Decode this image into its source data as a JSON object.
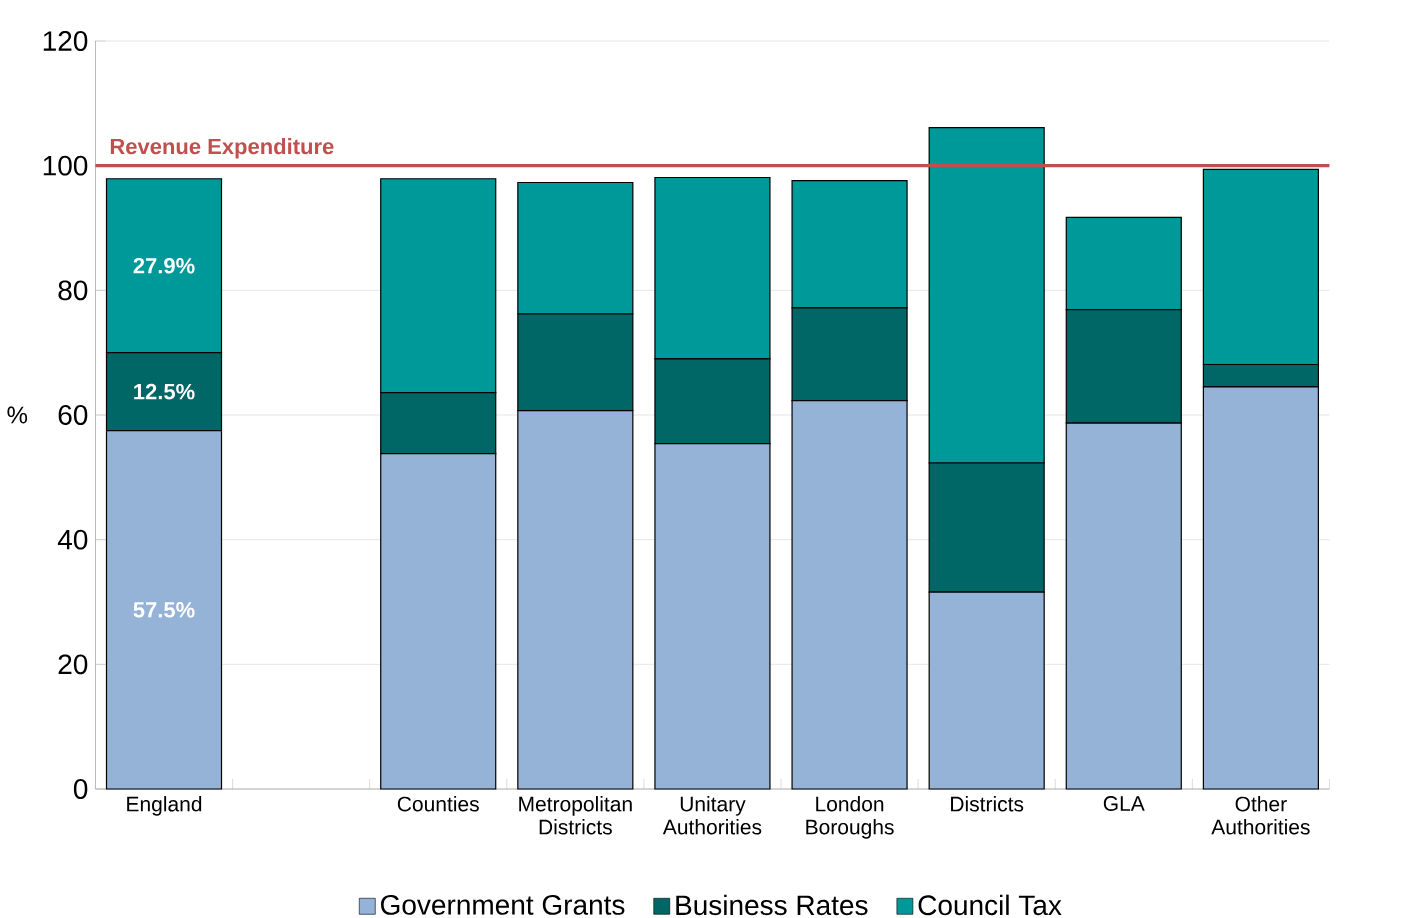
{
  "chart_data": {
    "type": "bar",
    "stacked": true,
    "ylabel": "%",
    "categories": [
      "England",
      null,
      "Counties",
      "Metropolitan Districts",
      "Unitary Authorities",
      "London Boroughs",
      "Districts",
      "GLA",
      "Other Authorities"
    ],
    "series": [
      {
        "name": "Government Grants",
        "color": "#95b3d7",
        "values": [
          57.5,
          null,
          53.8,
          60.7,
          55.4,
          62.3,
          31.6,
          58.7,
          64.5
        ],
        "value_labels": [
          "57.5%",
          null,
          null,
          null,
          null,
          null,
          null,
          null,
          null
        ]
      },
      {
        "name": "Business Rates",
        "color": "#006666",
        "values": [
          12.5,
          null,
          9.8,
          15.5,
          13.6,
          14.9,
          20.7,
          18.2,
          3.6
        ],
        "value_labels": [
          "12.5%",
          null,
          null,
          null,
          null,
          null,
          null,
          null,
          null
        ]
      },
      {
        "name": "Council Tax",
        "color": "#009999",
        "values": [
          27.9,
          null,
          34.3,
          21.1,
          29.1,
          20.4,
          53.8,
          14.8,
          31.3
        ],
        "value_labels": [
          "27.9%",
          null,
          null,
          null,
          null,
          null,
          null,
          null,
          null
        ]
      }
    ],
    "ylim": [
      0,
      120
    ],
    "yticks": [
      0,
      20,
      40,
      60,
      80,
      100,
      120
    ],
    "grid": "y",
    "legend": "bottom",
    "ref_lines": [
      {
        "axis": "y",
        "value": 100,
        "label": "Revenue Expenditure",
        "color": "#c0504d"
      }
    ]
  }
}
